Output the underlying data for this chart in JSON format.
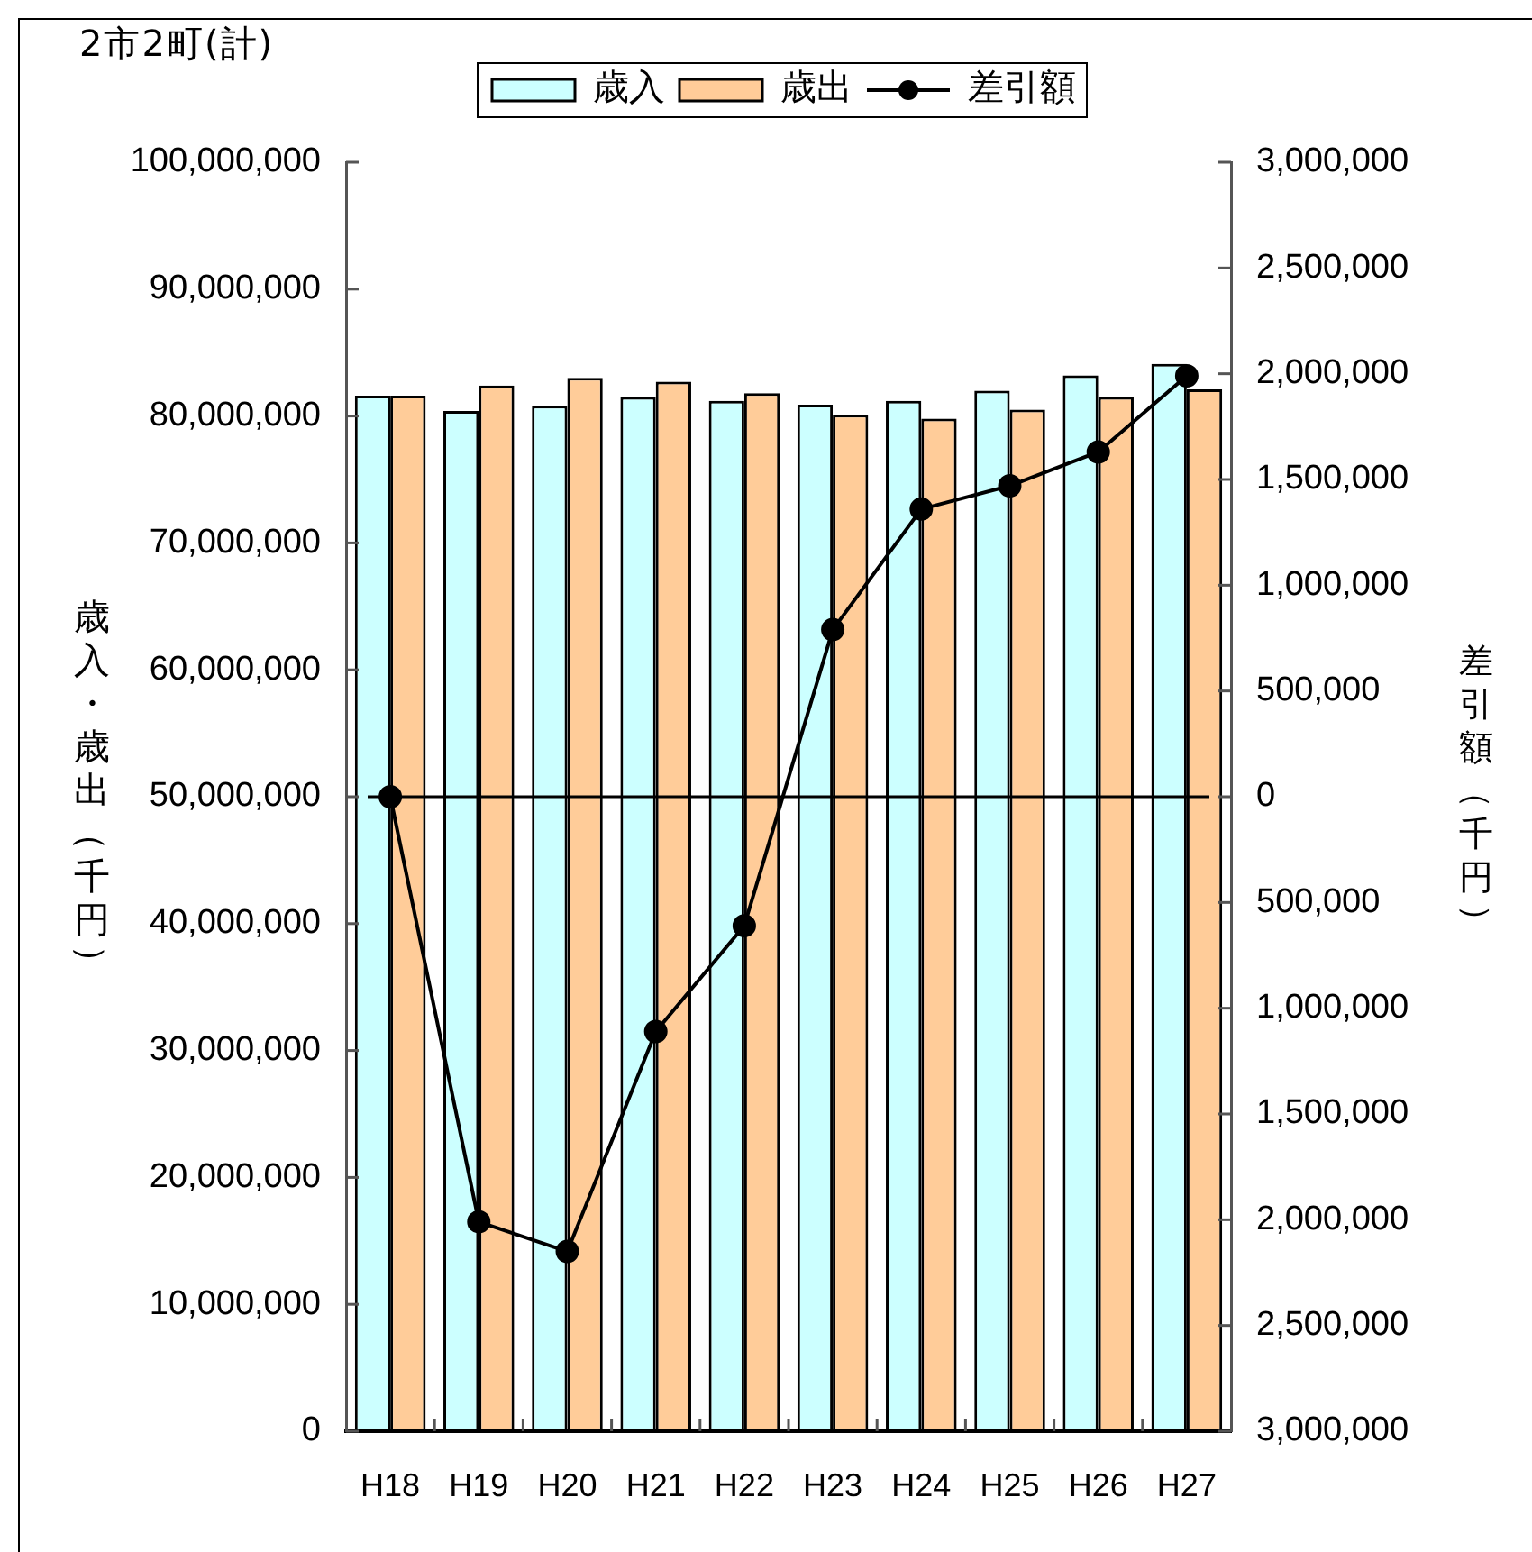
{
  "chart_data": {
    "type": "bar",
    "title": "2市2町(計)",
    "ylabel": "歳入・歳出（千円）",
    "y2label": "差引額（千円）",
    "categories": [
      "H18",
      "H19",
      "H20",
      "H21",
      "H22",
      "H23",
      "H24",
      "H25",
      "H26",
      "H27"
    ],
    "series": [
      {
        "name": "歳入",
        "color": "#ccffff",
        "values": [
          81600000,
          80400000,
          80800000,
          81500000,
          81200000,
          80900000,
          81200000,
          82000000,
          83200000,
          84100000
        ]
      },
      {
        "name": "歳出",
        "color": "#ffcc99",
        "values": [
          81600000,
          82400000,
          83000000,
          82700000,
          81800000,
          80100000,
          79800000,
          80500000,
          81500000,
          82100000
        ]
      },
      {
        "name": "差引額",
        "type": "line",
        "axis": "y2",
        "color": "#000000",
        "values": [
          0,
          -2010000,
          -2150000,
          -1110000,
          -610000,
          790000,
          1360000,
          1470000,
          1630000,
          1990000
        ]
      }
    ],
    "ylim": [
      0,
      100000000
    ],
    "yticks": [
      0,
      {
        "value": 10000000,
        "label": "10,000,000"
      },
      {
        "value": 20000000,
        "label": "20,000,000"
      },
      {
        "value": 30000000,
        "label": "30,000,000"
      },
      {
        "value": 40000000,
        "label": "40,000,000"
      },
      {
        "value": 50000000,
        "label": "50,000,000"
      },
      {
        "value": 60000000,
        "label": "60,000,000"
      },
      {
        "value": 70000000,
        "label": "70,000,000"
      },
      {
        "value": 80000000,
        "label": "80,000,000"
      },
      {
        "value": 90000000,
        "label": "90,000,000"
      },
      {
        "value": 100000000,
        "label": "100,000,000"
      }
    ],
    "y2lim": [
      -3000000,
      3000000
    ],
    "y2ticks": [
      {
        "value": -3000000,
        "label": "3,000,000"
      },
      {
        "value": -2500000,
        "label": "2,500,000"
      },
      {
        "value": -2000000,
        "label": "2,000,000"
      },
      {
        "value": -1500000,
        "label": "1,500,000"
      },
      {
        "value": -1000000,
        "label": "1,000,000"
      },
      {
        "value": -500000,
        "label": "500,000"
      },
      0,
      {
        "value": 500000,
        "label": "500,000"
      },
      {
        "value": 1000000,
        "label": "1,000,000"
      },
      {
        "value": 1500000,
        "label": "1,500,000"
      },
      {
        "value": 2000000,
        "label": "2,000,000"
      },
      {
        "value": 2500000,
        "label": "2,500,000"
      },
      {
        "value": 3000000,
        "label": "3,000,000"
      }
    ],
    "ref_lines": [
      {
        "axis": "y2",
        "value": 0,
        "color": "#000000"
      }
    ],
    "marker": "circle",
    "legend": "top",
    "grid": false
  }
}
